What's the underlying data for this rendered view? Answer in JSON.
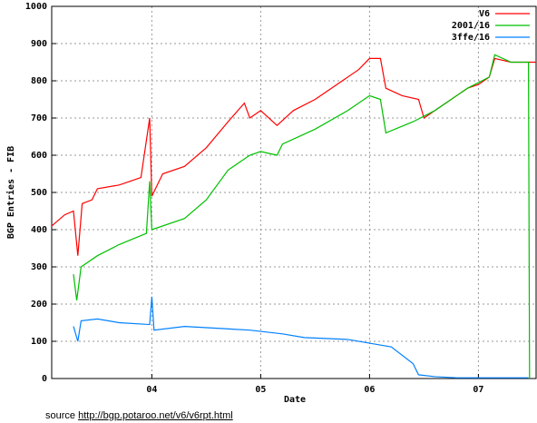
{
  "chart_data": {
    "type": "line",
    "ylabel": "BGP Entries - FIB",
    "xlabel": "Date",
    "xlim": [
      2003.08,
      2007.53
    ],
    "xticks": [
      {
        "value": 2004,
        "label": "04"
      },
      {
        "value": 2005,
        "label": "05"
      },
      {
        "value": 2006,
        "label": "06"
      },
      {
        "value": 2007,
        "label": "07"
      }
    ],
    "ylim": [
      0,
      1000
    ],
    "yticks": [
      0,
      100,
      200,
      300,
      400,
      500,
      600,
      700,
      800,
      900,
      1000
    ],
    "grid": true,
    "legend": "top-right",
    "series": [
      {
        "name": "V6",
        "color": "#ff0000",
        "x": [
          2003.08,
          2003.2,
          2003.28,
          2003.32,
          2003.36,
          2003.45,
          2003.5,
          2003.7,
          2003.9,
          2003.98,
          2004.0,
          2004.1,
          2004.3,
          2004.5,
          2004.7,
          2004.85,
          2004.9,
          2005.0,
          2005.15,
          2005.3,
          2005.5,
          2005.7,
          2005.9,
          2006.0,
          2006.1,
          2006.15,
          2006.3,
          2006.45,
          2006.5,
          2006.7,
          2006.9,
          2007.0,
          2007.1,
          2007.15,
          2007.3,
          2007.53
        ],
        "values": [
          410,
          440,
          450,
          330,
          470,
          480,
          510,
          520,
          540,
          700,
          490,
          550,
          570,
          620,
          690,
          740,
          700,
          720,
          680,
          720,
          750,
          790,
          830,
          860,
          860,
          780,
          760,
          750,
          700,
          740,
          780,
          790,
          810,
          860,
          850,
          850
        ]
      },
      {
        "name": "2001/16",
        "color": "#00c000",
        "x": [
          2003.28,
          2003.31,
          2003.35,
          2003.5,
          2003.7,
          2003.95,
          2003.98,
          2004.0,
          2004.3,
          2004.5,
          2004.7,
          2004.9,
          2005.0,
          2005.15,
          2005.2,
          2005.5,
          2005.8,
          2006.0,
          2006.1,
          2006.15,
          2006.4,
          2006.6,
          2006.9,
          2007.1,
          2007.15,
          2007.3,
          2007.46,
          2007.47
        ],
        "values": [
          280,
          210,
          300,
          330,
          360,
          390,
          530,
          400,
          430,
          480,
          560,
          600,
          610,
          600,
          630,
          670,
          720,
          760,
          750,
          660,
          690,
          720,
          780,
          810,
          870,
          850,
          850,
          0
        ]
      },
      {
        "name": "3ffe/16",
        "color": "#0080ff",
        "x": [
          2003.28,
          2003.32,
          2003.35,
          2003.5,
          2003.7,
          2003.98,
          2004.0,
          2004.02,
          2004.3,
          2004.6,
          2004.9,
          2005.2,
          2005.4,
          2005.8,
          2006.0,
          2006.2,
          2006.4,
          2006.45,
          2006.6,
          2006.8,
          2007.0,
          2007.46
        ],
        "values": [
          140,
          100,
          155,
          160,
          150,
          145,
          220,
          130,
          140,
          135,
          130,
          120,
          110,
          105,
          95,
          85,
          40,
          10,
          5,
          2,
          2,
          2
        ]
      }
    ]
  },
  "footer": {
    "source_label": "source",
    "source_url": "http://bgp.potaroo.net/v6/v6rpt.html"
  }
}
